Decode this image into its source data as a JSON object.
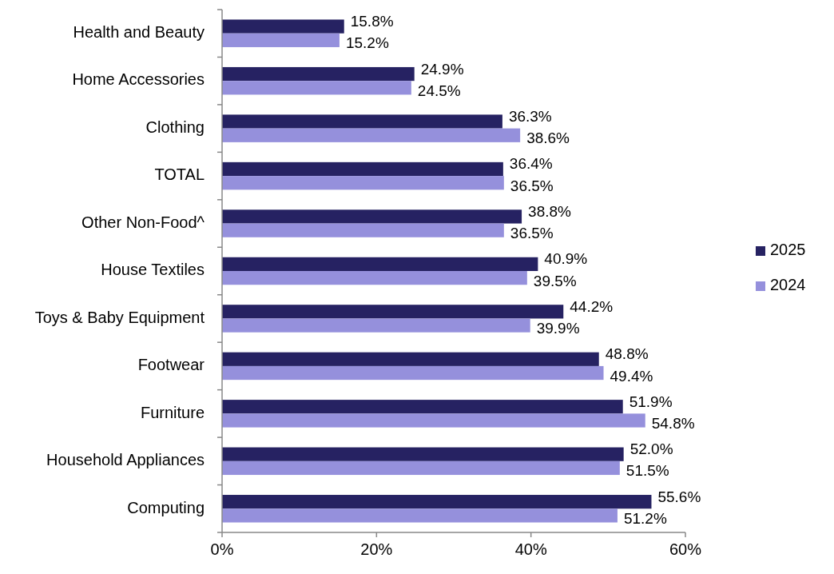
{
  "chart_data": {
    "type": "bar",
    "orientation": "horizontal",
    "categories": [
      "Health and Beauty",
      "Home Accessories",
      "Clothing",
      "TOTAL",
      "Other Non-Food^",
      "House Textiles",
      "Toys & Baby Equipment",
      "Footwear",
      "Furniture",
      "Household Appliances",
      "Computing"
    ],
    "series": [
      {
        "name": "2025",
        "color": "#262262",
        "values": [
          15.8,
          24.9,
          36.3,
          36.4,
          38.8,
          40.9,
          44.2,
          48.8,
          51.9,
          52.0,
          55.6
        ],
        "value_labels": [
          "15.8%",
          "24.9%",
          "36.3%",
          "36.4%",
          "38.8%",
          "40.9%",
          "44.2%",
          "48.8%",
          "51.9%",
          "52.0%",
          "55.6%"
        ]
      },
      {
        "name": "2024",
        "color": "#9590dc",
        "values": [
          15.2,
          24.5,
          38.6,
          36.5,
          36.5,
          39.5,
          39.9,
          49.4,
          54.8,
          51.5,
          51.2
        ],
        "value_labels": [
          "15.2%",
          "24.5%",
          "38.6%",
          "36.5%",
          "36.5%",
          "39.5%",
          "39.9%",
          "49.4%",
          "54.8%",
          "51.5%",
          "51.2%"
        ]
      }
    ],
    "xlim": [
      0,
      60
    ],
    "xticks": [
      {
        "value": 0,
        "label": "0%"
      },
      {
        "value": 20,
        "label": "20%"
      },
      {
        "value": 40,
        "label": "40%"
      },
      {
        "value": 60,
        "label": "60%"
      }
    ],
    "grid": false,
    "legend": "right"
  }
}
